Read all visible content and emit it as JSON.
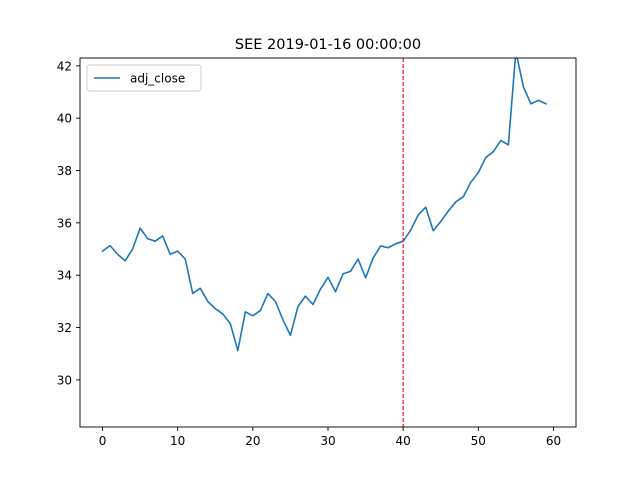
{
  "chart_data": {
    "type": "line",
    "title": "SEE 2019-01-16 00:00:00",
    "xlabel": "",
    "ylabel": "",
    "xlim": [
      -3,
      63
    ],
    "ylim": [
      28.2,
      42.3
    ],
    "xticks": [
      0,
      10,
      20,
      30,
      40,
      50,
      60
    ],
    "yticks": [
      30,
      32,
      34,
      36,
      38,
      40,
      42
    ],
    "grid": false,
    "legend": {
      "placement": "upper-left",
      "entries": [
        "adj_close"
      ]
    },
    "series": [
      {
        "name": "adj_close",
        "color": "#1f77b4",
        "x": [
          0,
          1,
          2,
          3,
          4,
          5,
          6,
          7,
          8,
          9,
          10,
          11,
          12,
          13,
          14,
          15,
          16,
          17,
          18,
          19,
          20,
          21,
          22,
          23,
          24,
          25,
          26,
          27,
          28,
          29,
          30,
          31,
          32,
          33,
          34,
          35,
          36,
          37,
          38,
          39,
          40,
          41,
          42,
          43,
          44,
          45,
          46,
          47,
          48,
          49,
          50,
          51,
          52,
          53,
          54,
          55,
          56,
          57,
          58,
          59
        ],
        "values": [
          34.92,
          35.13,
          34.8,
          34.55,
          35.0,
          35.8,
          35.4,
          35.3,
          35.5,
          34.8,
          34.92,
          34.62,
          33.3,
          33.5,
          33.0,
          32.72,
          32.52,
          32.15,
          31.12,
          32.6,
          32.45,
          32.65,
          33.3,
          33.0,
          32.3,
          31.7,
          32.8,
          33.2,
          32.88,
          33.47,
          33.92,
          33.37,
          34.05,
          34.15,
          34.62,
          33.9,
          34.65,
          35.12,
          35.05,
          35.2,
          35.3,
          35.72,
          36.3,
          36.6,
          35.7,
          36.05,
          36.45,
          36.8,
          37.0,
          37.55,
          37.92,
          38.5,
          38.72,
          39.15,
          38.98,
          42.55,
          41.2,
          40.55,
          40.68,
          40.55
        ]
      }
    ],
    "annotations": [
      {
        "type": "vline",
        "x": 40,
        "color": "#ff0000",
        "style": "dashed"
      }
    ]
  }
}
